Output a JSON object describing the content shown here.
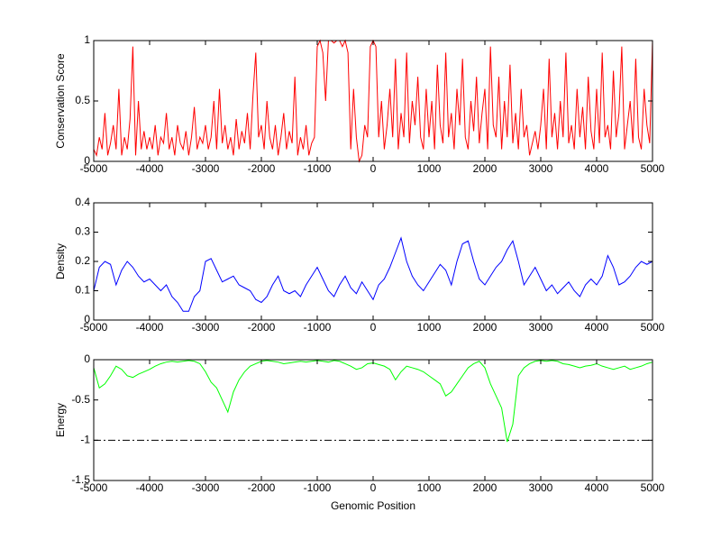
{
  "chart_data": [
    {
      "type": "line",
      "ylabel": "Conservation Score",
      "xlim": [
        -5000,
        5000
      ],
      "ylim": [
        0,
        1
      ],
      "xticks": [
        -5000,
        -4000,
        -3000,
        -2000,
        -1000,
        0,
        1000,
        2000,
        3000,
        4000,
        5000
      ],
      "yticks": [
        0,
        0.5,
        1
      ],
      "x": [
        -5000,
        -4950,
        -4900,
        -4850,
        -4800,
        -4750,
        -4700,
        -4650,
        -4600,
        -4550,
        -4500,
        -4450,
        -4400,
        -4350,
        -4300,
        -4250,
        -4200,
        -4150,
        -4100,
        -4050,
        -4000,
        -3950,
        -3900,
        -3850,
        -3800,
        -3750,
        -3700,
        -3650,
        -3600,
        -3550,
        -3500,
        -3450,
        -3400,
        -3350,
        -3300,
        -3250,
        -3200,
        -3150,
        -3100,
        -3050,
        -3000,
        -2950,
        -2900,
        -2850,
        -2800,
        -2750,
        -2700,
        -2650,
        -2600,
        -2550,
        -2500,
        -2450,
        -2400,
        -2350,
        -2300,
        -2250,
        -2200,
        -2150,
        -2100,
        -2050,
        -2000,
        -1950,
        -1900,
        -1850,
        -1800,
        -1750,
        -1700,
        -1650,
        -1600,
        -1550,
        -1500,
        -1450,
        -1400,
        -1350,
        -1300,
        -1250,
        -1200,
        -1150,
        -1100,
        -1050,
        -1000,
        -950,
        -900,
        -850,
        -800,
        -750,
        -700,
        -650,
        -600,
        -550,
        -500,
        -450,
        -400,
        -350,
        -300,
        -250,
        -200,
        -150,
        -100,
        -50,
        0,
        50,
        100,
        150,
        200,
        250,
        300,
        350,
        400,
        450,
        500,
        550,
        600,
        650,
        700,
        750,
        800,
        850,
        900,
        950,
        1000,
        1050,
        1100,
        1150,
        1200,
        1250,
        1300,
        1350,
        1400,
        1450,
        1500,
        1550,
        1600,
        1650,
        1700,
        1750,
        1800,
        1850,
        1900,
        1950,
        2000,
        2050,
        2100,
        2150,
        2200,
        2250,
        2300,
        2350,
        2400,
        2450,
        2500,
        2550,
        2600,
        2650,
        2700,
        2750,
        2800,
        2850,
        2900,
        2950,
        3000,
        3050,
        3100,
        3150,
        3200,
        3250,
        3300,
        3350,
        3400,
        3450,
        3500,
        3550,
        3600,
        3650,
        3700,
        3750,
        3800,
        3850,
        3900,
        3950,
        4000,
        4050,
        4100,
        4150,
        4200,
        4250,
        4300,
        4350,
        4400,
        4450,
        4500,
        4550,
        4600,
        4650,
        4700,
        4750,
        4800,
        4850,
        4900,
        4950,
        5000
      ],
      "series": [
        {
          "color": "#ff0000",
          "values": [
            0.1,
            0.05,
            0.2,
            0.1,
            0.4,
            0.05,
            0.15,
            0.3,
            0.1,
            0.6,
            0.05,
            0.2,
            0.1,
            0.35,
            0.95,
            0.05,
            0.5,
            0.1,
            0.25,
            0.1,
            0.2,
            0.1,
            0.3,
            0.05,
            0.2,
            0.15,
            0.4,
            0.1,
            0.2,
            0.05,
            0.3,
            0.15,
            0.1,
            0.25,
            0.05,
            0.2,
            0.45,
            0.1,
            0.2,
            0.15,
            0.3,
            0.1,
            0.2,
            0.5,
            0.1,
            0.6,
            0.15,
            0.3,
            0.1,
            0.2,
            0.05,
            0.35,
            0.1,
            0.25,
            0.15,
            0.4,
            0.1,
            0.55,
            0.9,
            0.2,
            0.3,
            0.1,
            0.5,
            0.2,
            0.1,
            0.3,
            0.05,
            0.2,
            0.4,
            0.1,
            0.25,
            0.15,
            0.7,
            0.05,
            0.2,
            0.1,
            0.3,
            0.05,
            0.15,
            0.2,
            0.95,
            1,
            0.9,
            0.5,
            1,
            1,
            0.98,
            1,
            1,
            0.95,
            1,
            0.9,
            0.1,
            0.6,
            0.2,
            0,
            0.05,
            0.3,
            0.2,
            0.95,
            1,
            0.95,
            0.2,
            0.5,
            0.1,
            0.3,
            0.6,
            0.2,
            0.85,
            0.1,
            0.4,
            0.2,
            0.9,
            0.15,
            0.5,
            0.3,
            0.7,
            0.2,
            0.1,
            0.6,
            0.2,
            0.5,
            0.1,
            0.8,
            0.3,
            0.15,
            0.9,
            0.2,
            0.4,
            0.1,
            0.6,
            0.3,
            0.85,
            0.2,
            0.1,
            0.5,
            0.25,
            0.7,
            0.15,
            0.4,
            0.6,
            0.1,
            0.95,
            0.3,
            0.2,
            0.7,
            0.1,
            0.5,
            0.2,
            0.8,
            0.15,
            0.4,
            0.1,
            0.6,
            0.2,
            0.3,
            0.05,
            0.15,
            0.25,
            0.1,
            0.3,
            0.6,
            0.1,
            0.85,
            0.2,
            0.4,
            0.1,
            0.5,
            0.2,
            0.9,
            0.15,
            0.3,
            0.1,
            0.6,
            0.2,
            0.45,
            0.1,
            0.7,
            0.25,
            0.1,
            0.6,
            0.15,
            0.9,
            0.2,
            0.3,
            0.1,
            0.75,
            0.2,
            0.4,
            0.95,
            0.1,
            0.3,
            0.5,
            0.15,
            0.85,
            0.2,
            0.1,
            0.6,
            0.3,
            0.15,
            1
          ]
        }
      ]
    },
    {
      "type": "line",
      "ylabel": "Density",
      "xlim": [
        -5000,
        5000
      ],
      "ylim": [
        0,
        0.4
      ],
      "xticks": [
        -5000,
        -4000,
        -3000,
        -2000,
        -1000,
        0,
        1000,
        2000,
        3000,
        4000,
        5000
      ],
      "yticks": [
        0,
        0.1,
        0.2,
        0.3,
        0.4
      ],
      "x": [
        -5000,
        -4900,
        -4800,
        -4700,
        -4600,
        -4500,
        -4400,
        -4300,
        -4200,
        -4100,
        -4000,
        -3900,
        -3800,
        -3700,
        -3600,
        -3500,
        -3400,
        -3300,
        -3200,
        -3100,
        -3000,
        -2900,
        -2800,
        -2700,
        -2600,
        -2500,
        -2400,
        -2300,
        -2200,
        -2100,
        -2000,
        -1900,
        -1800,
        -1700,
        -1600,
        -1500,
        -1400,
        -1300,
        -1200,
        -1100,
        -1000,
        -900,
        -800,
        -700,
        -600,
        -500,
        -400,
        -300,
        -200,
        -100,
        0,
        100,
        200,
        300,
        400,
        500,
        600,
        700,
        800,
        900,
        1000,
        1100,
        1200,
        1300,
        1400,
        1500,
        1600,
        1700,
        1800,
        1900,
        2000,
        2100,
        2200,
        2300,
        2400,
        2500,
        2600,
        2700,
        2800,
        2900,
        3000,
        3100,
        3200,
        3300,
        3400,
        3500,
        3600,
        3700,
        3800,
        3900,
        4000,
        4100,
        4200,
        4300,
        4400,
        4500,
        4600,
        4700,
        4800,
        4900,
        5000
      ],
      "series": [
        {
          "color": "#0000ff",
          "values": [
            0.1,
            0.18,
            0.2,
            0.19,
            0.12,
            0.17,
            0.2,
            0.18,
            0.15,
            0.13,
            0.14,
            0.12,
            0.1,
            0.12,
            0.08,
            0.06,
            0.03,
            0.03,
            0.08,
            0.1,
            0.2,
            0.21,
            0.17,
            0.13,
            0.14,
            0.15,
            0.12,
            0.11,
            0.1,
            0.07,
            0.06,
            0.08,
            0.12,
            0.15,
            0.1,
            0.09,
            0.1,
            0.08,
            0.12,
            0.15,
            0.18,
            0.14,
            0.1,
            0.08,
            0.12,
            0.15,
            0.11,
            0.09,
            0.13,
            0.1,
            0.07,
            0.12,
            0.14,
            0.18,
            0.23,
            0.28,
            0.2,
            0.15,
            0.12,
            0.1,
            0.13,
            0.16,
            0.19,
            0.17,
            0.12,
            0.2,
            0.26,
            0.27,
            0.2,
            0.14,
            0.12,
            0.15,
            0.18,
            0.2,
            0.24,
            0.27,
            0.2,
            0.12,
            0.15,
            0.18,
            0.14,
            0.1,
            0.12,
            0.09,
            0.11,
            0.13,
            0.1,
            0.08,
            0.12,
            0.14,
            0.12,
            0.15,
            0.22,
            0.18,
            0.12,
            0.13,
            0.15,
            0.18,
            0.2,
            0.19,
            0.2
          ]
        }
      ]
    },
    {
      "type": "line",
      "ylabel": "Energy",
      "xlabel": "Genomic Position",
      "xlim": [
        -5000,
        5000
      ],
      "ylim": [
        -1.5,
        0
      ],
      "xticks": [
        -5000,
        -4000,
        -3000,
        -2000,
        -1000,
        0,
        1000,
        2000,
        3000,
        4000,
        5000
      ],
      "yticks": [
        -1.5,
        -1,
        -0.5,
        0
      ],
      "hlines": [
        -1
      ],
      "x": [
        -5000,
        -4900,
        -4800,
        -4700,
        -4600,
        -4500,
        -4400,
        -4300,
        -4200,
        -4100,
        -4000,
        -3900,
        -3800,
        -3700,
        -3600,
        -3500,
        -3400,
        -3300,
        -3200,
        -3100,
        -3000,
        -2900,
        -2800,
        -2700,
        -2600,
        -2500,
        -2400,
        -2300,
        -2200,
        -2100,
        -2000,
        -1900,
        -1800,
        -1700,
        -1600,
        -1500,
        -1400,
        -1300,
        -1200,
        -1100,
        -1000,
        -900,
        -800,
        -700,
        -600,
        -500,
        -400,
        -300,
        -200,
        -100,
        0,
        100,
        200,
        300,
        400,
        500,
        600,
        700,
        800,
        900,
        1000,
        1100,
        1200,
        1300,
        1400,
        1500,
        1600,
        1700,
        1800,
        1900,
        2000,
        2100,
        2200,
        2300,
        2400,
        2500,
        2600,
        2700,
        2800,
        2900,
        3000,
        3100,
        3200,
        3300,
        3400,
        3500,
        3600,
        3700,
        3800,
        3900,
        4000,
        4100,
        4200,
        4300,
        4400,
        4500,
        4600,
        4700,
        4800,
        4900,
        5000
      ],
      "series": [
        {
          "color": "#00ff00",
          "values": [
            -0.1,
            -0.35,
            -0.3,
            -0.2,
            -0.08,
            -0.12,
            -0.2,
            -0.22,
            -0.18,
            -0.15,
            -0.12,
            -0.08,
            -0.05,
            -0.03,
            -0.02,
            -0.03,
            -0.02,
            -0.01,
            -0.02,
            -0.05,
            -0.15,
            -0.28,
            -0.35,
            -0.5,
            -0.65,
            -0.4,
            -0.25,
            -0.15,
            -0.08,
            -0.05,
            -0.02,
            -0.01,
            -0.02,
            -0.03,
            -0.05,
            -0.04,
            -0.03,
            -0.02,
            -0.03,
            -0.02,
            -0.01,
            -0.02,
            -0.03,
            -0.01,
            -0.02,
            -0.05,
            -0.08,
            -0.12,
            -0.1,
            -0.05,
            -0.04,
            -0.06,
            -0.08,
            -0.12,
            -0.25,
            -0.15,
            -0.08,
            -0.1,
            -0.12,
            -0.15,
            -0.2,
            -0.25,
            -0.3,
            -0.45,
            -0.4,
            -0.3,
            -0.2,
            -0.1,
            -0.05,
            -0.02,
            -0.1,
            -0.3,
            -0.45,
            -0.6,
            -1.02,
            -0.8,
            -0.2,
            -0.1,
            -0.05,
            -0.02,
            -0.01,
            -0.02,
            -0.01,
            -0.02,
            -0.05,
            -0.06,
            -0.08,
            -0.1,
            -0.08,
            -0.07,
            -0.05,
            -0.08,
            -0.1,
            -0.12,
            -0.1,
            -0.08,
            -0.12,
            -0.1,
            -0.08,
            -0.05,
            -0.03
          ]
        }
      ]
    }
  ]
}
